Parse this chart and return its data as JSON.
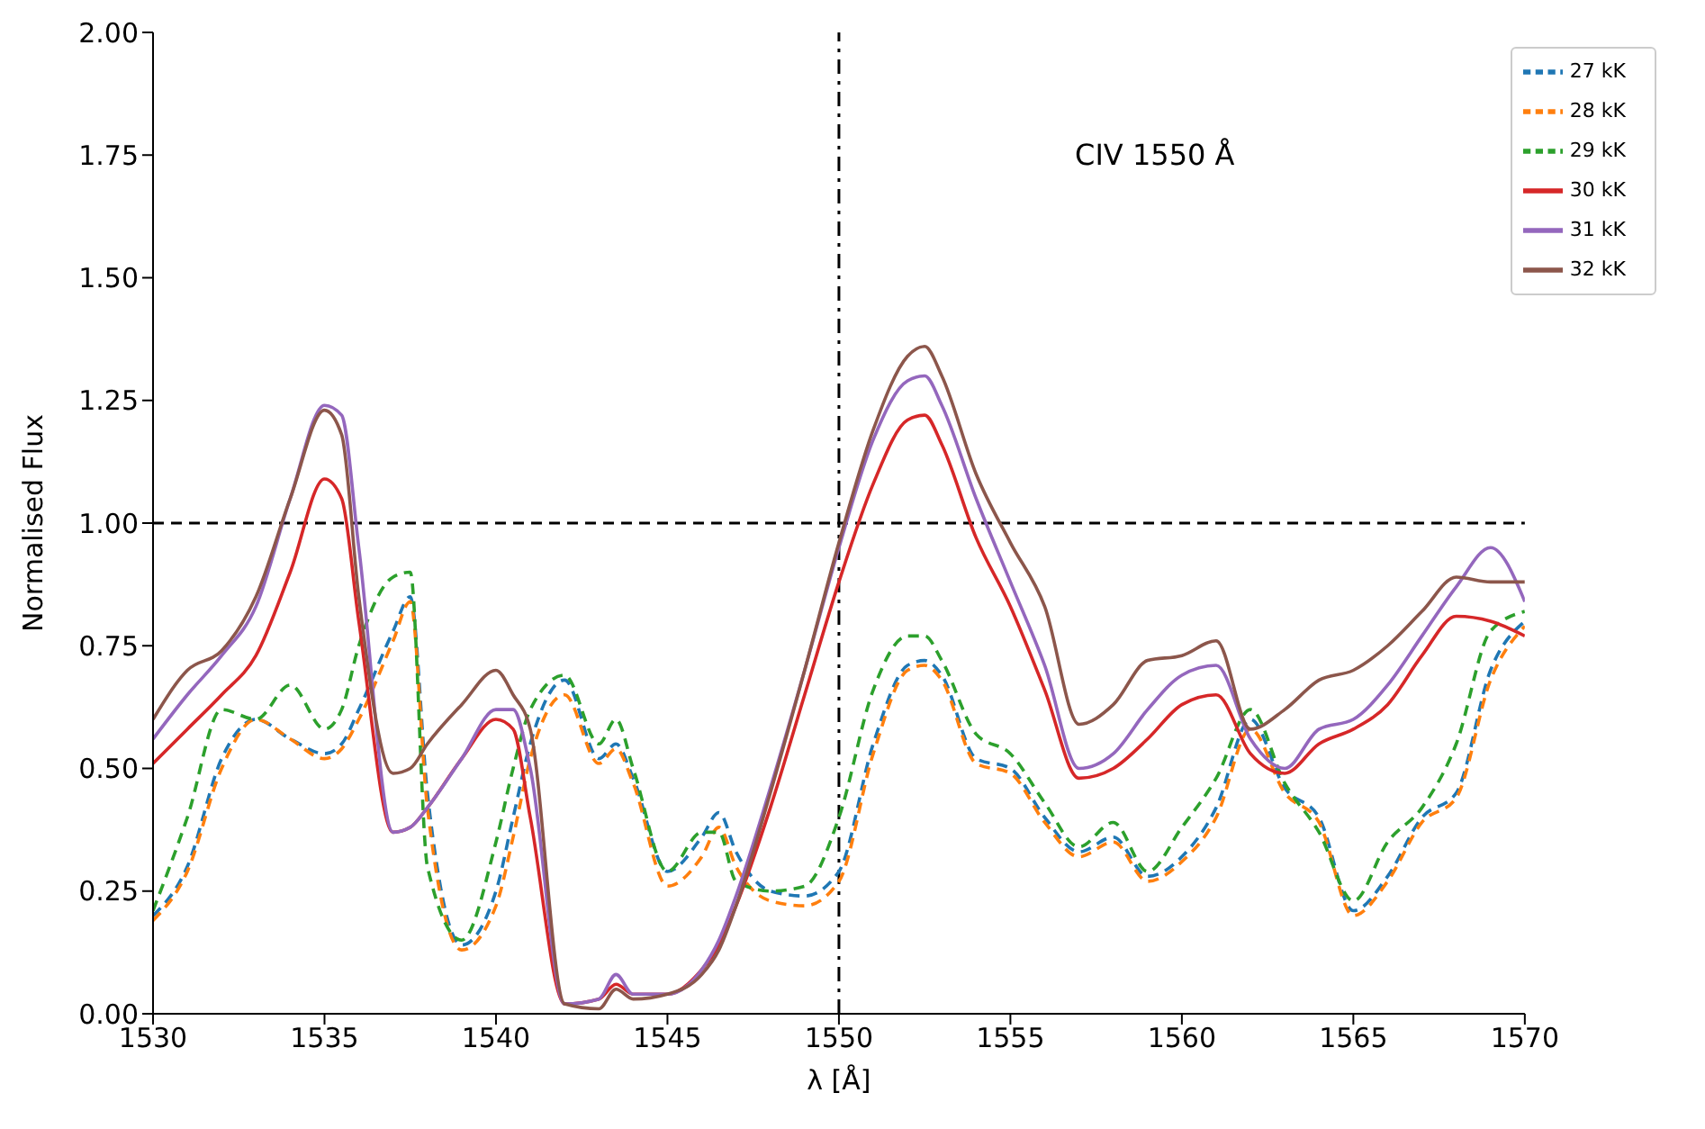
{
  "chart_data": {
    "type": "line",
    "xlabel": "λ [Å]",
    "ylabel": "Normalised Flux",
    "annotations": [
      "CIV 1550 Å"
    ],
    "x": [
      1530,
      1531,
      1532,
      1533,
      1534,
      1535,
      1535.5,
      1536,
      1537,
      1537.5,
      1538,
      1539,
      1540,
      1540.5,
      1541,
      1542,
      1543,
      1543.5,
      1544,
      1545,
      1546,
      1546.5,
      1547,
      1548,
      1549,
      1550,
      1551,
      1552,
      1552.5,
      1553,
      1554,
      1555,
      1556,
      1557,
      1558,
      1559,
      1560,
      1561,
      1562,
      1563,
      1564,
      1565,
      1566,
      1567,
      1568,
      1569,
      1570
    ],
    "xlim": [
      1530,
      1570
    ],
    "xticks": [
      1530,
      1535,
      1540,
      1545,
      1550,
      1555,
      1560,
      1565,
      1570
    ],
    "ylim": [
      0,
      2
    ],
    "yticks": [
      {
        "value": 0,
        "label": "0.00"
      },
      {
        "value": 0.25,
        "label": "0.25"
      },
      {
        "value": 0.5,
        "label": "0.50"
      },
      {
        "value": 0.75,
        "label": "0.75"
      },
      {
        "value": 1,
        "label": "1.00"
      },
      {
        "value": 1.25,
        "label": "1.25"
      },
      {
        "value": 1.5,
        "label": "1.50"
      },
      {
        "value": 1.75,
        "label": "1.75"
      },
      {
        "value": 2,
        "label": "2.00"
      }
    ],
    "legend": "top right",
    "grid": false,
    "ref_lines": [
      {
        "axis": "y",
        "value": 1,
        "line_style": "dashed",
        "color": "#000000"
      },
      {
        "axis": "x",
        "value": 1550,
        "line_style": "dashdot",
        "color": "#000000"
      }
    ],
    "series": [
      {
        "name": "27 kK",
        "color": "#1f77b4",
        "line_style": "dashed",
        "values": [
          0.2,
          0.3,
          0.52,
          0.6,
          0.56,
          0.53,
          0.55,
          0.62,
          0.78,
          0.85,
          0.45,
          0.14,
          0.25,
          0.4,
          0.55,
          0.68,
          0.52,
          0.55,
          0.48,
          0.29,
          0.36,
          0.41,
          0.33,
          0.25,
          0.24,
          0.29,
          0.55,
          0.71,
          0.72,
          0.69,
          0.52,
          0.5,
          0.4,
          0.33,
          0.36,
          0.28,
          0.32,
          0.42,
          0.6,
          0.46,
          0.4,
          0.21,
          0.28,
          0.4,
          0.45,
          0.7,
          0.8
        ]
      },
      {
        "name": "28 kK",
        "color": "#ff7f0e",
        "line_style": "dashed",
        "values": [
          0.19,
          0.29,
          0.5,
          0.6,
          0.56,
          0.52,
          0.54,
          0.6,
          0.76,
          0.84,
          0.42,
          0.13,
          0.22,
          0.36,
          0.52,
          0.65,
          0.51,
          0.54,
          0.47,
          0.26,
          0.32,
          0.38,
          0.3,
          0.23,
          0.22,
          0.27,
          0.53,
          0.7,
          0.71,
          0.68,
          0.51,
          0.49,
          0.39,
          0.32,
          0.35,
          0.27,
          0.31,
          0.4,
          0.58,
          0.45,
          0.39,
          0.2,
          0.27,
          0.39,
          0.44,
          0.68,
          0.79
        ]
      },
      {
        "name": "29 kK",
        "color": "#2ca02c",
        "line_style": "dashed",
        "values": [
          0.21,
          0.4,
          0.62,
          0.6,
          0.67,
          0.58,
          0.62,
          0.75,
          0.89,
          0.9,
          0.3,
          0.15,
          0.35,
          0.5,
          0.62,
          0.69,
          0.55,
          0.6,
          0.5,
          0.29,
          0.37,
          0.37,
          0.27,
          0.25,
          0.26,
          0.4,
          0.66,
          0.77,
          0.77,
          0.72,
          0.57,
          0.53,
          0.43,
          0.34,
          0.39,
          0.29,
          0.38,
          0.48,
          0.62,
          0.47,
          0.37,
          0.23,
          0.35,
          0.42,
          0.55,
          0.78,
          0.82
        ]
      },
      {
        "name": "30 kK",
        "color": "#d62728",
        "line_style": "solid",
        "values": [
          0.51,
          0.58,
          0.65,
          0.73,
          0.9,
          1.09,
          1.05,
          0.8,
          0.37,
          0.38,
          0.42,
          0.52,
          0.6,
          0.58,
          0.4,
          0.02,
          0.03,
          0.06,
          0.04,
          0.04,
          0.09,
          0.14,
          0.22,
          0.42,
          0.65,
          0.88,
          1.08,
          1.21,
          1.22,
          1.16,
          0.97,
          0.83,
          0.66,
          0.48,
          0.5,
          0.56,
          0.63,
          0.65,
          0.53,
          0.49,
          0.55,
          0.58,
          0.63,
          0.73,
          0.81,
          0.8,
          0.77
        ]
      },
      {
        "name": "31 kK",
        "color": "#9467bd",
        "line_style": "solid",
        "values": [
          0.56,
          0.65,
          0.73,
          0.83,
          1.05,
          1.24,
          1.22,
          0.95,
          0.37,
          0.38,
          0.42,
          0.52,
          0.62,
          0.62,
          0.5,
          0.02,
          0.03,
          0.08,
          0.04,
          0.04,
          0.09,
          0.15,
          0.24,
          0.46,
          0.7,
          0.95,
          1.17,
          1.29,
          1.3,
          1.24,
          1.05,
          0.88,
          0.71,
          0.5,
          0.53,
          0.62,
          0.69,
          0.71,
          0.56,
          0.5,
          0.58,
          0.6,
          0.67,
          0.77,
          0.87,
          0.95,
          0.84
        ]
      },
      {
        "name": "32 kK",
        "color": "#8c564b",
        "line_style": "solid",
        "values": [
          0.6,
          0.7,
          0.74,
          0.85,
          1.05,
          1.23,
          1.18,
          0.85,
          0.49,
          0.5,
          0.55,
          0.63,
          0.7,
          0.65,
          0.58,
          0.02,
          0.01,
          0.05,
          0.03,
          0.04,
          0.08,
          0.13,
          0.22,
          0.45,
          0.7,
          0.96,
          1.19,
          1.34,
          1.36,
          1.3,
          1.1,
          0.96,
          0.83,
          0.59,
          0.63,
          0.72,
          0.73,
          0.76,
          0.58,
          0.62,
          0.68,
          0.7,
          0.75,
          0.82,
          0.89,
          0.88,
          0.88
        ]
      }
    ]
  }
}
